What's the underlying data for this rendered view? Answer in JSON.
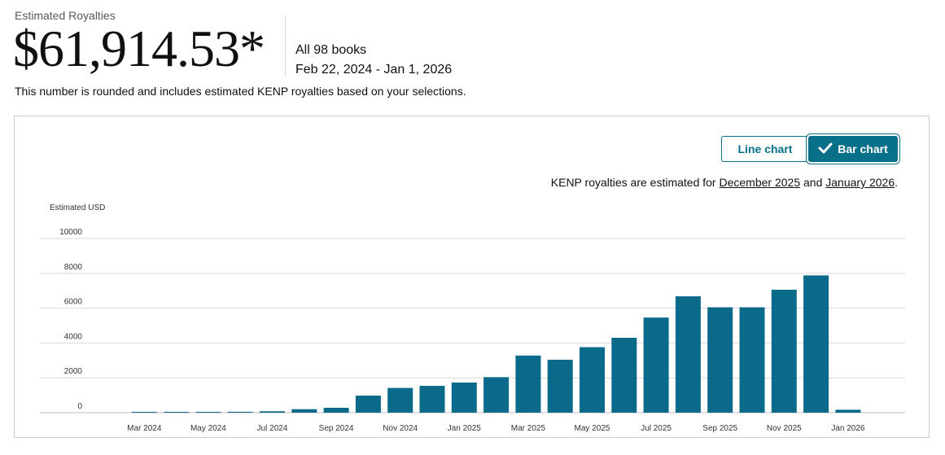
{
  "header": {
    "label": "Estimated Royalties",
    "amount": "$61,914.53*",
    "books": "All 98 books",
    "date_range": "Feb 22, 2024 - Jan 1, 2026",
    "note": "This number is rounded and includes estimated KENP royalties based on your selections."
  },
  "toggle": {
    "line_label": "Line chart",
    "bar_label": "Bar chart",
    "active": "bar"
  },
  "kenp_note": {
    "prefix": "KENP royalties are estimated for",
    "month1": "December 2025",
    "middle": "and",
    "month2": "January 2026",
    "suffix": "."
  },
  "colors": {
    "bar": "#0b6a8a",
    "accent": "#087089",
    "grid": "#d9d9d9"
  },
  "chart_data": {
    "type": "bar",
    "ylabel": "Estimated USD",
    "ylim": [
      0,
      10000
    ],
    "yticks": [
      0,
      2000,
      4000,
      6000,
      8000,
      10000
    ],
    "categories": [
      "Feb 2024",
      "Mar 2024",
      "Apr 2024",
      "May 2024",
      "Jun 2024",
      "Jul 2024",
      "Aug 2024",
      "Sep 2024",
      "Oct 2024",
      "Nov 2024",
      "Dec 2024",
      "Jan 2025",
      "Feb 2025",
      "Mar 2025",
      "Apr 2025",
      "May 2025",
      "Jun 2025",
      "Jul 2025",
      "Aug 2025",
      "Sep 2025",
      "Oct 2025",
      "Nov 2025",
      "Dec 2025",
      "Jan 2026"
    ],
    "tick_labels": [
      "Mar 2024",
      "May 2024",
      "Jul 2024",
      "Sep 2024",
      "Nov 2024",
      "Jan 2025",
      "Mar 2025",
      "May 2025",
      "Jul 2025",
      "Sep 2025",
      "Nov 2025",
      "Jan 2026"
    ],
    "values": [
      0,
      5,
      10,
      40,
      50,
      80,
      200,
      280,
      980,
      1420,
      1540,
      1730,
      2040,
      3280,
      3040,
      3760,
      4300,
      5460,
      6680,
      6050,
      6050,
      7060,
      7880,
      170
    ]
  }
}
